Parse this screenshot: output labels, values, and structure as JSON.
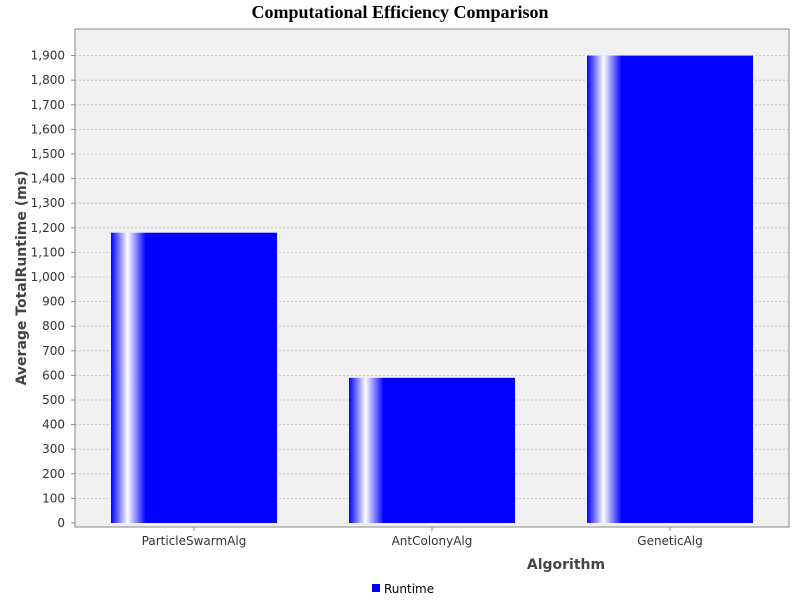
{
  "chart_data": {
    "type": "bar",
    "title": "Computational Efficiency Comparison",
    "xlabel": "Algorithm",
    "ylabel": "Average TotalRuntime (ms)",
    "categories": [
      "ParticleSwarmAlg",
      "AntColonyAlg",
      "GeneticAlg"
    ],
    "series": [
      {
        "name": "Runtime",
        "values": [
          1180,
          590,
          1900
        ]
      }
    ],
    "ylim": [
      0,
      1990
    ],
    "yticks": [
      0,
      100,
      200,
      300,
      400,
      500,
      600,
      700,
      800,
      900,
      1000,
      1100,
      1200,
      1300,
      1400,
      1500,
      1600,
      1700,
      1800,
      1900
    ],
    "ytick_labels": [
      "0",
      "100",
      "200",
      "300",
      "400",
      "500",
      "600",
      "700",
      "800",
      "900",
      "1,000",
      "1,100",
      "1,200",
      "1,300",
      "1,400",
      "1,500",
      "1,600",
      "1,700",
      "1,800",
      "1,900"
    ],
    "grid": true,
    "legend_position": "bottom-center",
    "colors": {
      "bar": "#0000ff",
      "plot_background": "#f0f0f0",
      "grid": "#c0c0c0"
    }
  }
}
